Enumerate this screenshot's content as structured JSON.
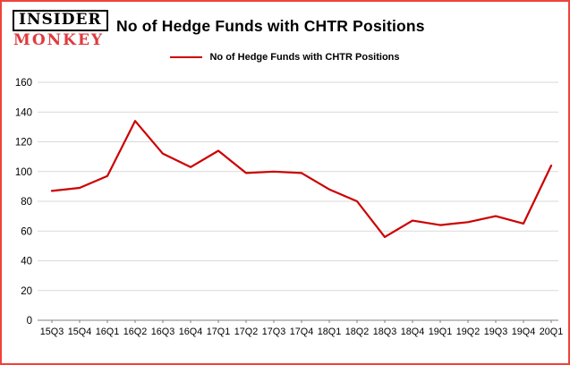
{
  "branding": {
    "logo_line1": "INSIDER",
    "logo_line2": "MONKEY"
  },
  "header": {
    "title": "No of Hedge Funds with CHTR Positions"
  },
  "legend": {
    "label": "No of Hedge Funds with CHTR Positions"
  },
  "colors": {
    "line": "#cc0000",
    "frame": "#f0413b",
    "logo_red": "#e03a3e",
    "grid": "#d9d9d9",
    "axis": "#808080",
    "text": "#000000"
  },
  "chart_data": {
    "type": "line",
    "title": "No of Hedge Funds with CHTR Positions",
    "series_name": "No of Hedge Funds with CHTR Positions",
    "categories": [
      "15Q3",
      "15Q4",
      "16Q1",
      "16Q2",
      "16Q3",
      "16Q4",
      "17Q1",
      "17Q2",
      "17Q3",
      "17Q4",
      "18Q1",
      "18Q2",
      "18Q3",
      "18Q4",
      "19Q1",
      "19Q2",
      "19Q3",
      "19Q4",
      "20Q1"
    ],
    "values": [
      87,
      89,
      97,
      134,
      112,
      103,
      114,
      99,
      100,
      99,
      88,
      80,
      56,
      67,
      64,
      66,
      70,
      65,
      104
    ],
    "ylim": [
      0,
      160
    ],
    "yticks": [
      0,
      20,
      40,
      60,
      80,
      100,
      120,
      140,
      160
    ],
    "grid": true,
    "legend_position": "top",
    "xlabel": "",
    "ylabel": ""
  }
}
